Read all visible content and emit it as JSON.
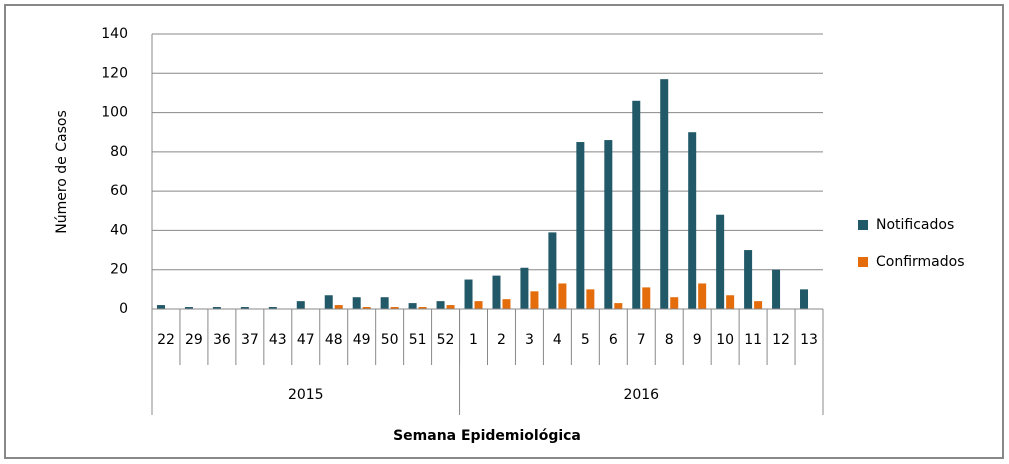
{
  "chart_data": {
    "type": "bar",
    "x_label": "Semana Epidemiológica",
    "y_label": "Número de Casos",
    "categories": [
      "22",
      "29",
      "36",
      "37",
      "43",
      "47",
      "48",
      "49",
      "50",
      "51",
      "52",
      "1",
      "2",
      "3",
      "4",
      "5",
      "6",
      "7",
      "8",
      "9",
      "10",
      "11",
      "12",
      "13"
    ],
    "category_groups": [
      {
        "label": "2015",
        "size": 11
      },
      {
        "label": "2016",
        "size": 13
      }
    ],
    "series": [
      {
        "name": "Notificados",
        "color": "#215968",
        "values": [
          2,
          1,
          1,
          1,
          1,
          4,
          7,
          6,
          6,
          3,
          4,
          15,
          17,
          21,
          39,
          85,
          86,
          106,
          117,
          90,
          48,
          30,
          20,
          10
        ]
      },
      {
        "name": "Confirmados",
        "color": "#e46c0a",
        "values": [
          0,
          0,
          0,
          0,
          0,
          0,
          2,
          1,
          1,
          1,
          2,
          4,
          5,
          9,
          13,
          10,
          3,
          11,
          6,
          13,
          7,
          4,
          0,
          0
        ]
      }
    ],
    "ylim": [
      0,
      140
    ],
    "yticks": [
      0,
      20,
      40,
      60,
      80,
      100,
      120,
      140
    ],
    "grid": true,
    "legend": "right"
  }
}
